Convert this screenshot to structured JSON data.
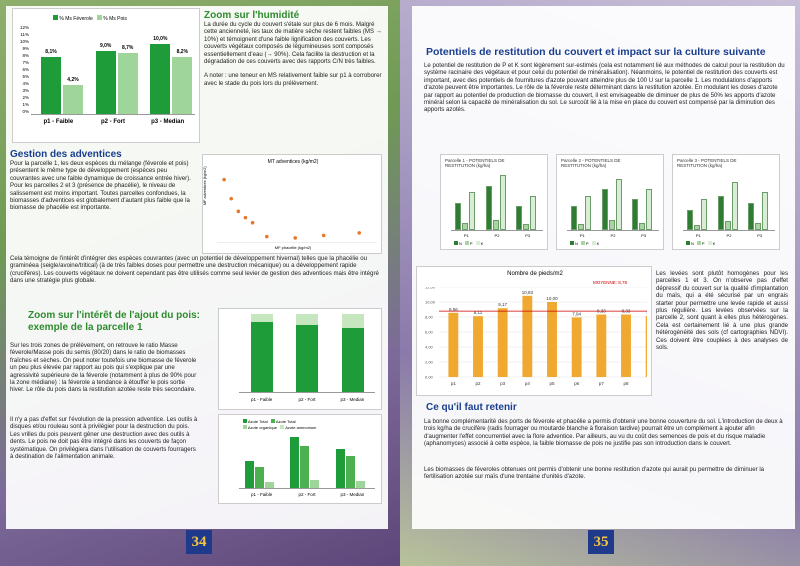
{
  "left": {
    "page_number": "34",
    "humidity": {
      "title": "Zoom sur l'humidité",
      "text": "La durée du cycle du couvert s'étale sur plus de 6 mois. Malgré cette ancienneté, les taux de matière sèche restent faibles (MS → 10%) et témoignent d'une faible lignification des couverts. Les couverts végétaux composés de légumineuses sont composés essentiellement d'eau (→ 90%). Cela facilite la destruction et la dégradation de ces couverts avec des rapports C/N très faibles.",
      "note": "A noter : une teneur en MS relativement faible sur p1 à corroborer avec le stade du pois lors du prélèvement."
    },
    "ms_chart": {
      "legend": [
        "% Ms Féverole",
        "% Ms Pois"
      ],
      "ylabels": [
        "12%",
        "11%",
        "10%",
        "9%",
        "8%",
        "7%",
        "6%",
        "5%",
        "4%",
        "3%",
        "2%",
        "1%",
        "0%"
      ],
      "categories": [
        "p1 - Faible",
        "p2 - Fort",
        "p3 - Median"
      ]
    },
    "adventices": {
      "title": "Gestion des adventices",
      "text": "Pour la parcelle 1, les deux espèces du mélange (féverole et pois) présentent le même type de développement (espèces peu couvrantes avec une faible dynamique de croissance entrée hiver). Pour les parcelles 2 et 3 (présence de phacélie), le niveau de salissement est moins important. Toutes parcelles confondues, la biomasses d'adventices est globalement d'autant plus faible que la biomasse de phacélie est importante.",
      "text2": "Cela témoigne de l'intérêt d'intégrer des espèces couvrantes (avec un potentiel de développement hivernal) telles que la phacélie ou graminéea (seigle/avoine/tritical) (à de très faibles doses pour permettre une destruction mécanique) ou a développement rapide (crucifères). Les couverts végétaux ne doivent cependant pas être utilisés comme seul levier de gestion des adventices mais être intégré dans une stratégie plus globale."
    },
    "scatter_chart": {
      "title": "MT adventices (kg/m2)",
      "xlabel": "MF phacélie (kg/m2)",
      "ylabel": "MF adventices (kg/m2)"
    },
    "pois": {
      "title": "Zoom sur l'intérêt de l'ajout du pois: exemple de la parcelle 1",
      "text": "Sur les trois zones de prélèvement, on retrouve le ratio Masse féverole/Masse pois du semis (80/20) dans le ratio de biomasses fraîches et sèches. On peut noter toutefois une biomasse de féverole un peu plus élevée par rapport au pois qui s'explique par une agressivité supérieure de la féverole (notamment à plus de 90% pour la zone médiane) : la féverole a tendance à étouffer le pois sortie hiver. Le rôle du pois dans la restitution azotée reste très secondaire.",
      "text2": "Il n'y a pas d'effet sur l'évolution de la pression adventice. Les outils à disques et/ou rouleau sont à privilégier pour la destruction du pois. Les vrilles du pois peuvent gêner une destruction avec des outils à dents. Le pois ne doit pas être intégré dans les couverts de façon systématique. On privilégiera dans l'utilisation de couverts fourragers à destination de l'alimentation animale."
    },
    "stack_chart": {
      "categories": [
        "p1 - Faible",
        "p2 - Fort",
        "p3 - Median"
      ]
    },
    "azote_chart": {
      "legend": [
        "Azote Total",
        "Azote Total",
        "Azote organique",
        "Azote ammonium"
      ],
      "categories": [
        "p1 - Faible",
        "p2 - Fort",
        "p3 - Median"
      ]
    }
  },
  "right": {
    "page_number": "35",
    "potentiels": {
      "title": "Potentiels de restitution du couvert et impact sur la culture suivante",
      "text": "Le potentiel de restitution de P et K sont légèrement sur-estimés (cela est notamment lié aux méthodes de calcul pour la restitution du système racinaire des végétaux et pour celui du potentiel de minéralisation). Néanmoins, le potentiel de restitution des couverts est important, avec des potentiels de fournitures d'azote pouvant atteindre plus de 100 U sur la parcelle 1. Les modulations d'apports d'azote peuvent être importantes. Le rôle de la féverole reste déterminant dans la restitution azotée. En modulant les doses d'azote par rapport au potentiel de production de biomasse du couvert, il est envisageable de diminuer de plus de 50% les apports d'azote minéral selon la capacité de minéralisation du sol. Le surcoût lié à la mise en place du couvert est compensé par la diminution des apports azotés."
    },
    "mini_charts": [
      {
        "title": "Parcelle 1 - POTENTIELS DE RESTITUTION (kg/ha)",
        "legend": [
          "N",
          "P",
          "K"
        ]
      },
      {
        "title": "Parcelle 2 - POTENTIELS DE RESTITUTION (kg/ha)",
        "legend": [
          "N",
          "P",
          "K"
        ]
      },
      {
        "title": "Parcelle 3 - POTENTIELS DE RESTITUTION (kg/ha)",
        "legend": [
          "N",
          "P",
          "K"
        ]
      }
    ],
    "pieds_chart": {
      "title": "Nombre de pieds/m2",
      "legend": "MOYENNE: 8,78",
      "categories": [
        "p1",
        "p2",
        "p3",
        "p4",
        "p5",
        "p6",
        "p7",
        "p8",
        "p9"
      ],
      "labels": [
        "8,56",
        "8,11",
        "9,17",
        "10,83",
        "10,00",
        "7,94",
        "8,33",
        "8,33",
        "8,11"
      ]
    },
    "levees": {
      "text": "Les levées sont plutôt homogènes pour les parcelles 1 et 3. On n'observe pas d'effet dépressif du couvert sur la qualité d'implantation du maïs, qui a été sécurisé par un engrais starter pour permettre une levée rapide et aussi plus régulière. Les levées observées sur la parcelle 2, sont quant à elles plus hétérogènes. Cela est certainement lié à une plus grande hétérogénéité des sols (cf cartographies NDVI). Ces doivent être couplées à des analyses de sols."
    },
    "retenir": {
      "title": "Ce qu'il faut retenir",
      "text": "La bonne complémentarité des ports de féverole et phacélie a permis d'obtenir une bonne couverture du sol. L'introduction de deux à trois kg/ha de crucifère (radis fourrager ou moutarde blanche à floraison tardive) pourrait être un complément à ajouter afin d'augmenter l'effet concurrentiel avec la flore adventice. Par ailleurs, au vu du coût des semences de pois et du risque maladie (aphanomyces) associé à cette espèce, la faible biomasse de pois ne justifie pas son introduction dans le couvert.",
      "text2": "Les biomasses de féveroles obtenues ont permis d'obtenir une bonne restitution d'azote qui aurait pu permettre de diminuer la fertilisation azotée sur maïs d'une trentaine d'unités d'azote."
    }
  },
  "chart_data": [
    {
      "type": "bar",
      "categories": [
        "p1 - Faible",
        "p2 - Fort",
        "p3 - Median"
      ],
      "series": [
        {
          "name": "% Ms Féverole",
          "values": [
            8.1,
            9.0,
            10.0
          ]
        },
        {
          "name": "% Ms Pois",
          "values": [
            4.2,
            8.7,
            8.2
          ]
        }
      ],
      "labels": [
        [
          "8,1%",
          "4,2%"
        ],
        [
          "9,0%",
          "8,7%"
        ],
        [
          "10,0%",
          "8,2%"
        ]
      ],
      "ylim": [
        0,
        12
      ],
      "colors": [
        "#1f9c3a",
        "#9fd49a"
      ]
    },
    {
      "type": "scatter",
      "title": "MT adventices (kg/m2)",
      "xlabel": "MF phacélie (kg/m2)",
      "ylabel": "MF adventices (kg/m2)",
      "points": [
        [
          0.2,
          0.5
        ],
        [
          0.4,
          0.35
        ],
        [
          0.6,
          0.25
        ],
        [
          0.8,
          0.2
        ],
        [
          1.0,
          0.16
        ],
        [
          1.4,
          0.05
        ],
        [
          2.2,
          0.04
        ],
        [
          3.0,
          0.06
        ],
        [
          4.0,
          0.08
        ]
      ],
      "xlim": [
        0,
        4.5
      ],
      "ylim": [
        0,
        0.6
      ],
      "color": "#e8782a"
    },
    {
      "type": "bar",
      "stacked": true,
      "categories": [
        "p1 - Faible",
        "p2 - Fort",
        "p3 - Median"
      ],
      "series": [
        {
          "name": "Féverole",
          "values": [
            90,
            86,
            82
          ]
        },
        {
          "name": "Pois",
          "values": [
            10,
            14,
            18
          ]
        }
      ],
      "ylim": [
        0,
        100
      ],
      "colors": [
        "#1f9c3a",
        "#c6e6bf"
      ]
    },
    {
      "type": "bar",
      "categories": [
        "p1 - Faible",
        "p2 - Fort",
        "p3 - Median"
      ],
      "series": [
        {
          "name": "Azote Total",
          "values": [
            38,
            72,
            55
          ]
        },
        {
          "name": "Azote organique",
          "values": [
            30,
            60,
            45
          ]
        },
        {
          "name": "Azote ammonium",
          "values": [
            8,
            12,
            10
          ]
        }
      ],
      "colors": [
        "#1f9c3a",
        "#4caf50",
        "#9fd49a"
      ]
    },
    {
      "type": "bar",
      "title": "Parcelle 1 - POTENTIELS DE RESTITUTION (kg/ha)",
      "categories": [
        "P1",
        "P2",
        "P3"
      ],
      "series": [
        {
          "name": "N",
          "values": [
            80,
            130,
            70
          ]
        },
        {
          "name": "P",
          "values": [
            20,
            30,
            18
          ]
        },
        {
          "name": "K",
          "values": [
            110,
            160,
            100
          ]
        }
      ]
    },
    {
      "type": "bar",
      "title": "Parcelle 2 - POTENTIELS DE RESTITUTION (kg/ha)",
      "categories": [
        "P1",
        "P2",
        "P3"
      ],
      "series": [
        {
          "name": "N",
          "values": [
            70,
            120,
            90
          ]
        },
        {
          "name": "P",
          "values": [
            18,
            28,
            22
          ]
        },
        {
          "name": "K",
          "values": [
            100,
            150,
            120
          ]
        }
      ]
    },
    {
      "type": "bar",
      "title": "Parcelle 3 - POTENTIELS DE RESTITUTION (kg/ha)",
      "categories": [
        "P1",
        "P2",
        "P3"
      ],
      "series": [
        {
          "name": "N",
          "values": [
            60,
            100,
            80
          ]
        },
        {
          "name": "P",
          "values": [
            15,
            25,
            20
          ]
        },
        {
          "name": "K",
          "values": [
            90,
            140,
            110
          ]
        }
      ]
    },
    {
      "type": "bar",
      "title": "Nombre de pieds/m2",
      "categories": [
        "p1",
        "p2",
        "p3",
        "p4",
        "p5",
        "p6",
        "p7",
        "p8",
        "p9"
      ],
      "values": [
        8.56,
        8.11,
        9.17,
        10.83,
        10.0,
        7.94,
        8.33,
        8.33,
        8.11
      ],
      "mean": 8.78,
      "ylim": [
        0,
        12
      ],
      "color": "#f0a830"
    }
  ]
}
